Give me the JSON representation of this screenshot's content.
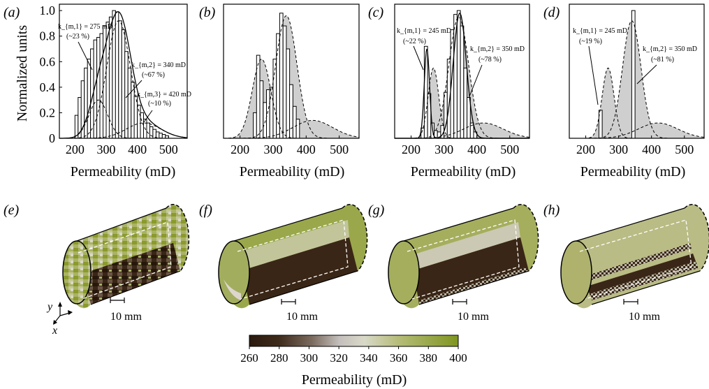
{
  "chart_data": [
    {
      "type": "bar",
      "panel": "(a)",
      "xlim": [
        150,
        560
      ],
      "ylim": [
        0,
        1.05
      ],
      "xticks": [
        "200",
        "300",
        "400",
        "500"
      ],
      "yticks": [
        "0",
        "0.2",
        "0.4",
        "0.6",
        "0.8",
        "1.0"
      ],
      "xlabel": "Permeability (mD)",
      "ylabel": "Normalized units",
      "bin_width": 10,
      "bar_x": [
        205,
        215,
        225,
        235,
        245,
        255,
        265,
        275,
        285,
        295,
        305,
        315,
        325,
        335,
        345,
        355,
        365,
        375,
        385,
        395,
        405,
        415,
        425,
        435,
        445,
        455,
        465,
        475,
        485,
        495
      ],
      "bar_values": [
        0.18,
        0.32,
        0.45,
        0.55,
        0.62,
        0.7,
        0.77,
        0.79,
        0.82,
        0.88,
        0.91,
        0.95,
        1.0,
        0.99,
        0.92,
        0.85,
        0.68,
        0.55,
        0.44,
        0.33,
        0.26,
        0.2,
        0.15,
        0.12,
        0.09,
        0.07,
        0.05,
        0.04,
        0.03,
        0.02
      ],
      "fit_curves": [
        {
          "mu": 275,
          "sigma": 30,
          "amp": 0.3,
          "style": "dashed"
        },
        {
          "mu": 340,
          "sigma": 38,
          "amp": 0.92,
          "style": "dashed"
        },
        {
          "mu": 420,
          "sigma": 55,
          "amp": 0.12,
          "style": "dashed"
        },
        {
          "components": [
            0,
            1,
            2
          ],
          "style": "solid"
        }
      ],
      "annotations": [
        {
          "label": "k_{m,1} = 275 mD",
          "sub": "(~23 %)"
        },
        {
          "label": "k_{m,2} = 340 mD",
          "sub": "(~67 %)"
        },
        {
          "label": "k_{m,3} = 420 mD",
          "sub": "(~10 %)"
        }
      ]
    },
    {
      "type": "bar",
      "panel": "(b)",
      "xlim": [
        150,
        560
      ],
      "ylim": [
        0,
        1.05
      ],
      "xticks": [
        "200",
        "300",
        "400",
        "500"
      ],
      "xlabel": "Permeability (mD)",
      "bin_width": 10,
      "bar_x": [
        245,
        255,
        265,
        275,
        285,
        295,
        305,
        315,
        325,
        335,
        345,
        355,
        365,
        375
      ],
      "bar_values": [
        0.2,
        0.65,
        0.45,
        0.28,
        0.38,
        0.4,
        0.62,
        0.82,
        0.98,
        0.88,
        0.7,
        0.42,
        0.25,
        0.15
      ],
      "fit_curves": [
        {
          "mu": 265,
          "sigma": 28,
          "amp": 0.62,
          "style": "dashed",
          "fill": "#cfcfcf"
        },
        {
          "mu": 340,
          "sigma": 32,
          "amp": 0.96,
          "style": "dashed",
          "fill": "#cfcfcf"
        },
        {
          "mu": 420,
          "sigma": 60,
          "amp": 0.14,
          "style": "dashed",
          "fill": "#cfcfcf"
        }
      ]
    },
    {
      "type": "bar",
      "panel": "(c)",
      "xlim": [
        150,
        560
      ],
      "ylim": [
        0,
        1.05
      ],
      "xticks": [
        "200",
        "300",
        "400",
        "500"
      ],
      "xlabel": "Permeability (mD)",
      "bin_width": 10,
      "bar_x": [
        235,
        245,
        255,
        265,
        275,
        285,
        295,
        305,
        315,
        325,
        335,
        345,
        355,
        365,
        375,
        385,
        395
      ],
      "bar_values": [
        0.08,
        0.72,
        0.35,
        0.12,
        0.06,
        0.05,
        0.1,
        0.36,
        0.62,
        0.85,
        0.97,
        1.0,
        0.88,
        0.55,
        0.32,
        0.12,
        0.05
      ],
      "fit_curves": [
        {
          "mu": 268,
          "sigma": 16,
          "amp": 0.55,
          "style": "dashed",
          "fill": "#cfcfcf"
        },
        {
          "mu": 345,
          "sigma": 30,
          "amp": 0.95,
          "style": "dashed",
          "fill": "#cfcfcf"
        },
        {
          "mu": 420,
          "sigma": 60,
          "amp": 0.12,
          "style": "dashed",
          "fill": "#cfcfcf"
        },
        {
          "mu": 248,
          "sigma": 8,
          "amp": 0.7,
          "style": "solid"
        },
        {
          "mu": 348,
          "sigma": 20,
          "amp": 0.98,
          "style": "solid"
        }
      ],
      "annotations": [
        {
          "label": "k_{m,1} = 245 mD",
          "sub": "(~22 %)"
        },
        {
          "label": "k_{m,2} = 350 mD",
          "sub": "(~78 %)"
        }
      ]
    },
    {
      "type": "bar",
      "panel": "(d)",
      "xlim": [
        150,
        560
      ],
      "ylim": [
        0,
        1.05
      ],
      "xticks": [
        "200",
        "300",
        "400",
        "500"
      ],
      "xlabel": "Permeability (mD)",
      "bin_width": 10,
      "bar_x": [
        245,
        345
      ],
      "bar_values": [
        0.22,
        1.0
      ],
      "fit_curves": [
        {
          "mu": 268,
          "sigma": 18,
          "amp": 0.55,
          "style": "dashed",
          "fill": "#cfcfcf"
        },
        {
          "mu": 340,
          "sigma": 28,
          "amp": 0.92,
          "style": "dashed",
          "fill": "#cfcfcf"
        },
        {
          "mu": 420,
          "sigma": 60,
          "amp": 0.12,
          "style": "dashed",
          "fill": "#cfcfcf"
        }
      ],
      "annotations": [
        {
          "label": "k_{m,1} = 245 mD",
          "sub": "(~19 %)"
        },
        {
          "label": "k_{m,2} = 350 mD",
          "sub": "(~81 %)"
        }
      ]
    }
  ],
  "cylinders": {
    "panels": [
      "(e)",
      "(f)",
      "(g)",
      "(h)"
    ],
    "scale_label": "10 mm",
    "axis_y": "y",
    "axis_x": "x"
  },
  "colorbar": {
    "ticks": [
      "260",
      "280",
      "300",
      "320",
      "340",
      "360",
      "380",
      "400"
    ],
    "label": "Permeability (mD)",
    "stops": [
      "#2a1a0e",
      "#5a4634",
      "#9a8d84",
      "#d8d5d4",
      "#c7c8a3",
      "#9caa4e",
      "#7f9620"
    ]
  }
}
